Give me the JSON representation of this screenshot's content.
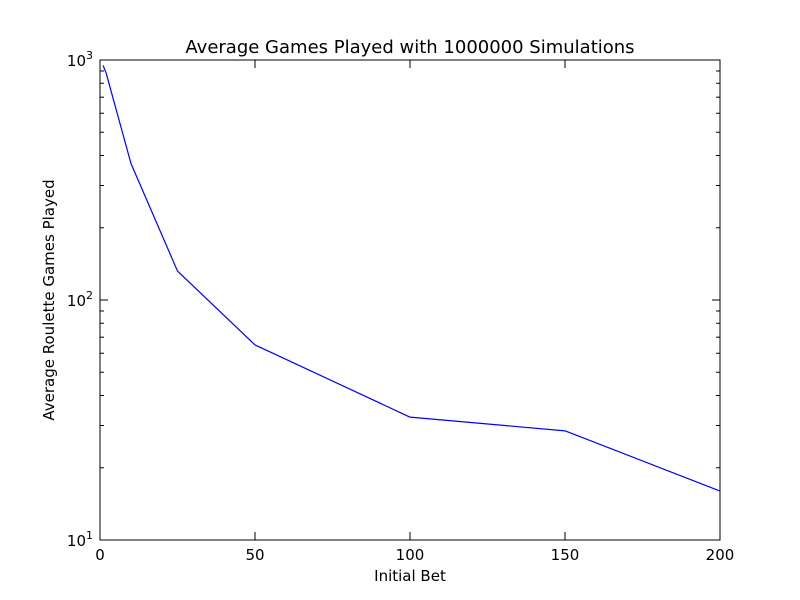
{
  "chart_data": {
    "type": "line",
    "title": "Average Games Played with 1000000 Simulations",
    "xlabel": "Initial Bet",
    "ylabel": "Average Roulette Games Played",
    "xlim": [
      0,
      200
    ],
    "ylim": [
      10,
      1000
    ],
    "yscale": "log",
    "grid": false,
    "x_ticks": [
      {
        "value": 0,
        "label": "0"
      },
      {
        "value": 50,
        "label": "50"
      },
      {
        "value": 100,
        "label": "100"
      },
      {
        "value": 150,
        "label": "150"
      },
      {
        "value": 200,
        "label": "200"
      }
    ],
    "y_ticks": [
      {
        "value": 10,
        "base": "10",
        "exponent": "1"
      },
      {
        "value": 100,
        "base": "10",
        "exponent": "2"
      },
      {
        "value": 1000,
        "base": "10",
        "exponent": "3"
      }
    ],
    "series": [
      {
        "color": "#0000ff",
        "x": [
          1,
          2,
          10,
          25,
          50,
          100,
          150,
          200
        ],
        "y": [
          950,
          880,
          370,
          132,
          65,
          32.5,
          28.5,
          16
        ]
      }
    ]
  }
}
